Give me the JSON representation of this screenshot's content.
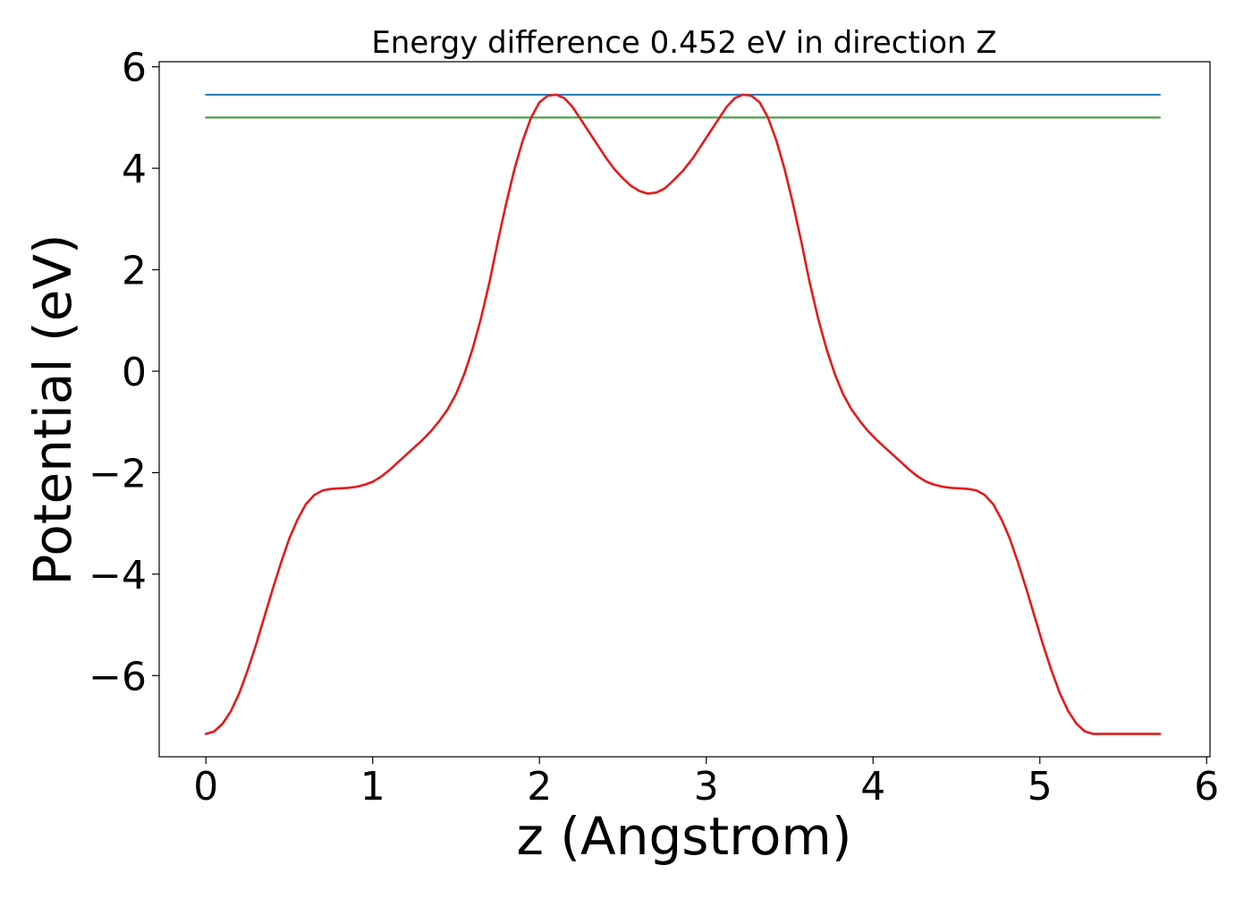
{
  "chart_data": {
    "type": "line",
    "title": "Energy difference 0.452 eV in direction Z",
    "xlabel": "z (Angstrom)",
    "ylabel": "Potential (eV)",
    "xlim": [
      -0.28,
      6.02
    ],
    "ylim": [
      -7.6,
      6.1
    ],
    "xticks": [
      0,
      1,
      2,
      3,
      4,
      5,
      6
    ],
    "xtick_labels": [
      "0",
      "1",
      "2",
      "3",
      "4",
      "5",
      "6"
    ],
    "yticks": [
      -6,
      -4,
      -2,
      0,
      2,
      4,
      6
    ],
    "ytick_labels": [
      "−6",
      "−4",
      "−2",
      "0",
      "2",
      "4",
      "6"
    ],
    "grid": false,
    "series": [
      {
        "color": "#1f77b4",
        "x": [
          0.0,
          5.72
        ],
        "y": [
          5.45,
          5.45
        ]
      },
      {
        "color": "#2ca02c",
        "x": [
          0.0,
          5.72
        ],
        "y": [
          5.0,
          5.0
        ]
      },
      {
        "color": "#e41a1c",
        "x": [
          0.0,
          0.05,
          0.1,
          0.15,
          0.2,
          0.25,
          0.3,
          0.35,
          0.4,
          0.45,
          0.5,
          0.55,
          0.6,
          0.65,
          0.7,
          0.75,
          0.8,
          0.85,
          0.9,
          0.95,
          1.0,
          1.05,
          1.1,
          1.15,
          1.2,
          1.25,
          1.3,
          1.35,
          1.4,
          1.45,
          1.5,
          1.55,
          1.6,
          1.65,
          1.7,
          1.75,
          1.8,
          1.85,
          1.9,
          1.95,
          2.0,
          2.05,
          2.1,
          2.15,
          2.2,
          2.25,
          2.3,
          2.35,
          2.4,
          2.45,
          2.5,
          2.55,
          2.6,
          2.65,
          2.7,
          2.75,
          2.8,
          2.86,
          2.92,
          2.97,
          3.02,
          3.07,
          3.12,
          3.17,
          3.22,
          3.27,
          3.32,
          3.37,
          3.42,
          3.47,
          3.52,
          3.57,
          3.62,
          3.67,
          3.72,
          3.77,
          3.82,
          3.87,
          3.92,
          3.97,
          4.02,
          4.07,
          4.12,
          4.17,
          4.22,
          4.27,
          4.32,
          4.37,
          4.42,
          4.47,
          4.52,
          4.57,
          4.62,
          4.67,
          4.72,
          4.77,
          4.82,
          4.87,
          4.92,
          4.97,
          5.02,
          5.07,
          5.12,
          5.17,
          5.22,
          5.27,
          5.32,
          5.37,
          5.42,
          5.47,
          5.52,
          5.57,
          5.62,
          5.67,
          5.72
        ],
        "y": [
          -7.15,
          -7.1,
          -6.95,
          -6.7,
          -6.35,
          -5.9,
          -5.4,
          -4.85,
          -4.3,
          -3.78,
          -3.3,
          -2.92,
          -2.62,
          -2.44,
          -2.35,
          -2.32,
          -2.31,
          -2.3,
          -2.28,
          -2.24,
          -2.18,
          -2.08,
          -1.95,
          -1.8,
          -1.65,
          -1.5,
          -1.35,
          -1.18,
          -0.98,
          -0.75,
          -0.45,
          -0.05,
          0.45,
          1.05,
          1.75,
          2.55,
          3.3,
          3.98,
          4.55,
          5.0,
          5.3,
          5.43,
          5.45,
          5.38,
          5.2,
          4.95,
          4.7,
          4.45,
          4.2,
          3.98,
          3.8,
          3.65,
          3.55,
          3.5,
          3.52,
          3.6,
          3.75,
          3.95,
          4.2,
          4.45,
          4.7,
          4.95,
          5.2,
          5.38,
          5.45,
          5.43,
          5.3,
          5.0,
          4.55,
          3.98,
          3.3,
          2.55,
          1.75,
          1.05,
          0.45,
          -0.05,
          -0.45,
          -0.75,
          -0.98,
          -1.18,
          -1.35,
          -1.5,
          -1.65,
          -1.8,
          -1.95,
          -2.08,
          -2.18,
          -2.24,
          -2.28,
          -2.3,
          -2.31,
          -2.32,
          -2.35,
          -2.44,
          -2.62,
          -2.92,
          -3.3,
          -3.78,
          -4.3,
          -4.85,
          -5.4,
          -5.9,
          -6.35,
          -6.7,
          -6.95,
          -7.1,
          -7.15,
          -7.15,
          -7.15,
          -7.15,
          -7.15,
          -7.15,
          -7.15,
          -7.15,
          -7.15
        ]
      }
    ]
  }
}
